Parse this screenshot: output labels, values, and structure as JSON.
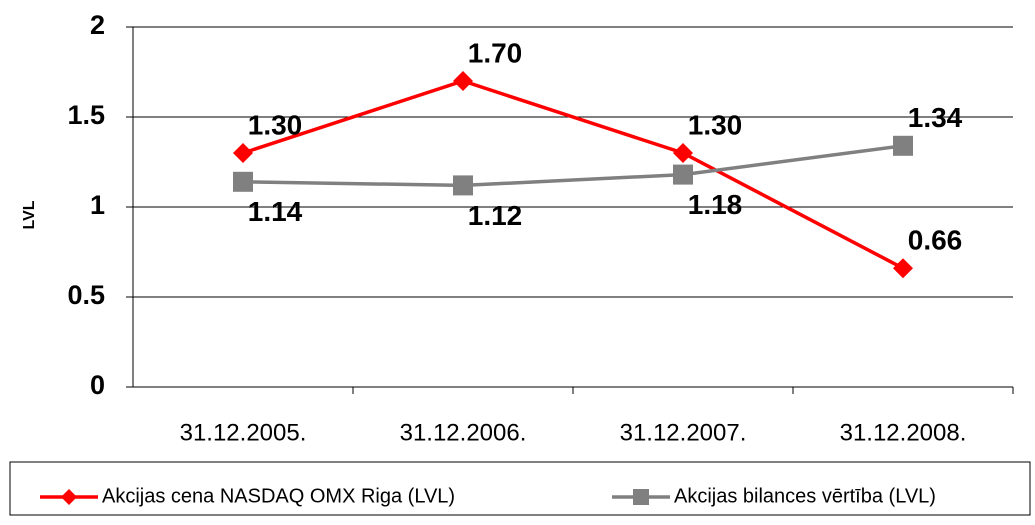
{
  "chart_data": {
    "type": "line",
    "y_label": "LVL",
    "categories": [
      "31.12.2005.",
      "31.12.2006.",
      "31.12.2007.",
      "31.12.2008."
    ],
    "series": [
      {
        "name": "Akcijas cena NASDAQ OMX Riga (LVL)",
        "color": "#ff0000",
        "marker": "diamond",
        "values": [
          1.3,
          1.7,
          1.3,
          0.66
        ],
        "value_labels": [
          "1.30",
          "1.70",
          "1.30",
          "0.66"
        ]
      },
      {
        "name": "Akcijas bilances vērtība (LVL)",
        "color": "#808080",
        "marker": "square",
        "values": [
          1.14,
          1.12,
          1.18,
          1.34
        ],
        "value_labels": [
          "1.14",
          "1.12",
          "1.18",
          "1.34"
        ]
      }
    ],
    "ylim": [
      0,
      2
    ],
    "yticks": [
      0,
      0.5,
      1,
      1.5,
      2
    ],
    "grid": true,
    "legend": "bottom"
  }
}
